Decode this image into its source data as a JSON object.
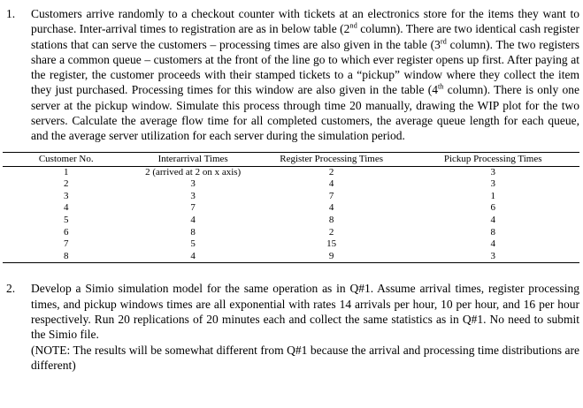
{
  "document": {
    "questions": [
      {
        "number": "1.",
        "runs": [
          {
            "t": "Customers arrive randomly to a checkout counter with tickets at an electronics store for the items they want to purchase.  Inter-arrival times to registration are as in below table (2"
          },
          {
            "t": "nd",
            "sup": true
          },
          {
            "t": " column). There are two identical cash register stations that can serve the customers – processing times are also given in the table (3"
          },
          {
            "t": "rd",
            "sup": true
          },
          {
            "t": " column). The two registers share a common queue – customers at the front of the line go to which ever register opens up first. After paying at the register, the customer proceeds with their stamped tickets to a “pickup” window where they collect the item they just purchased. Processing times for this window are also given in the table (4"
          },
          {
            "t": "th",
            "sup": true
          },
          {
            "t": " column).  There is only one server at the pickup window. Simulate this process through time 20 manually, drawing the WIP plot for the two servers. Calculate the average flow time for all completed customers, the average queue length for each queue, and the average server utilization for each server during the simulation period."
          }
        ]
      },
      {
        "number": "2.",
        "text": "Develop a Simio simulation model for the same operation as in Q#1.  Assume arrival times, register processing times, and pickup windows times are all exponential with rates 14 arrivals per hour,  10 per hour, and 16 per hour respectively. Run 20 replications of 20 minutes each and collect the same statistics as in Q#1. No need to submit the Simio file.",
        "note": "(NOTE: The results will be somewhat different from Q#1 because the arrival and processing time distributions are different)"
      }
    ],
    "table": {
      "headers": [
        "Customer No.",
        "Interarrival Times",
        "Register Processing Times",
        "Pickup Processing Times"
      ],
      "rows": [
        [
          "1",
          "2 (arrived at 2 on x axis)",
          "2",
          "3"
        ],
        [
          "2",
          "3",
          "4",
          "3"
        ],
        [
          "3",
          "3",
          "7",
          "1"
        ],
        [
          "4",
          "7",
          "4",
          "6"
        ],
        [
          "5",
          "4",
          "8",
          "4"
        ],
        [
          "6",
          "8",
          "2",
          "8"
        ],
        [
          "7",
          "5",
          "15",
          "4"
        ],
        [
          "8",
          "4",
          "9",
          "3"
        ]
      ]
    }
  }
}
